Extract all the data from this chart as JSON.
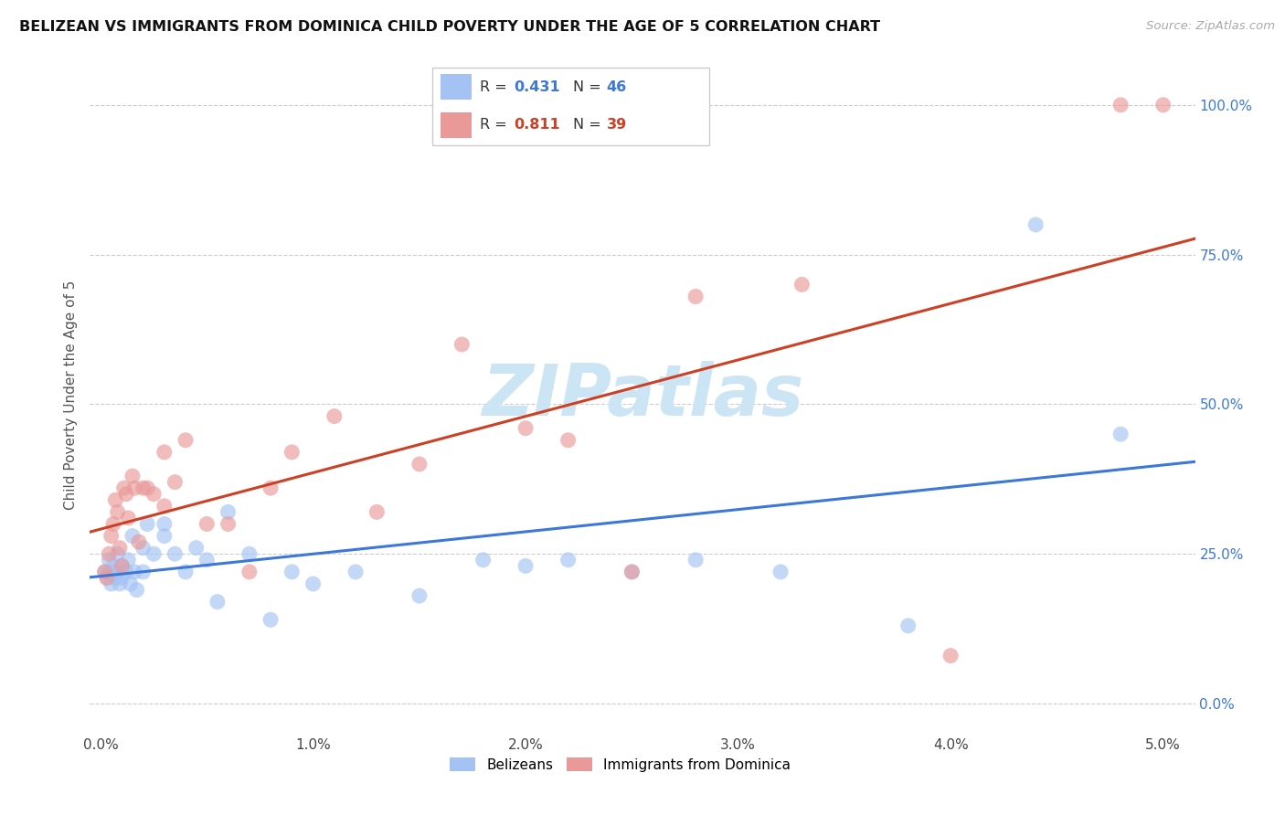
{
  "title": "BELIZEAN VS IMMIGRANTS FROM DOMINICA CHILD POVERTY UNDER THE AGE OF 5 CORRELATION CHART",
  "source": "Source: ZipAtlas.com",
  "ylabel": "Child Poverty Under the Age of 5",
  "ytick_values": [
    0.0,
    0.25,
    0.5,
    0.75,
    1.0
  ],
  "ytick_labels": [
    "0.0%",
    "25.0%",
    "50.0%",
    "75.0%",
    "100.0%"
  ],
  "xtick_values": [
    0.0,
    0.01,
    0.02,
    0.03,
    0.04,
    0.05
  ],
  "xtick_labels": [
    "0.0%",
    "1.0%",
    "2.0%",
    "3.0%",
    "4.0%",
    "5.0%"
  ],
  "xlim": [
    -0.0005,
    0.0515
  ],
  "ylim": [
    -0.05,
    1.08
  ],
  "legend_labels": [
    "Belizeans",
    "Immigrants from Dominica"
  ],
  "legend_R_blue": "0.431",
  "legend_N_blue": "46",
  "legend_R_pink": "0.811",
  "legend_N_pink": "39",
  "blue_scatter_color": "#a4c2f4",
  "pink_scatter_color": "#ea9999",
  "blue_line_color": "#3c78d8",
  "pink_line_color": "#cc4125",
  "watermark": "ZIPatlas",
  "watermark_color": "#cce5f5",
  "blue_x": [
    0.0002,
    0.0003,
    0.0004,
    0.0004,
    0.0005,
    0.0006,
    0.0006,
    0.0007,
    0.0008,
    0.0008,
    0.0009,
    0.001,
    0.001,
    0.0012,
    0.0013,
    0.0014,
    0.0015,
    0.0016,
    0.0017,
    0.002,
    0.002,
    0.0022,
    0.0025,
    0.003,
    0.003,
    0.0035,
    0.004,
    0.0045,
    0.005,
    0.0055,
    0.006,
    0.007,
    0.008,
    0.009,
    0.01,
    0.012,
    0.015,
    0.018,
    0.02,
    0.022,
    0.025,
    0.028,
    0.032,
    0.038,
    0.044,
    0.048
  ],
  "blue_y": [
    0.22,
    0.21,
    0.22,
    0.24,
    0.2,
    0.22,
    0.23,
    0.21,
    0.22,
    0.25,
    0.2,
    0.21,
    0.23,
    0.22,
    0.24,
    0.2,
    0.28,
    0.22,
    0.19,
    0.26,
    0.22,
    0.3,
    0.25,
    0.28,
    0.3,
    0.25,
    0.22,
    0.26,
    0.24,
    0.17,
    0.32,
    0.25,
    0.14,
    0.22,
    0.2,
    0.22,
    0.18,
    0.24,
    0.23,
    0.24,
    0.22,
    0.24,
    0.22,
    0.13,
    0.8,
    0.45
  ],
  "pink_x": [
    0.0002,
    0.0003,
    0.0004,
    0.0005,
    0.0006,
    0.0007,
    0.0008,
    0.0009,
    0.001,
    0.0011,
    0.0012,
    0.0013,
    0.0015,
    0.0016,
    0.0018,
    0.002,
    0.0022,
    0.0025,
    0.003,
    0.003,
    0.0035,
    0.004,
    0.005,
    0.006,
    0.007,
    0.008,
    0.009,
    0.011,
    0.013,
    0.015,
    0.017,
    0.02,
    0.022,
    0.025,
    0.028,
    0.033,
    0.04,
    0.048,
    0.05
  ],
  "pink_y": [
    0.22,
    0.21,
    0.25,
    0.28,
    0.3,
    0.34,
    0.32,
    0.26,
    0.23,
    0.36,
    0.35,
    0.31,
    0.38,
    0.36,
    0.27,
    0.36,
    0.36,
    0.35,
    0.33,
    0.42,
    0.37,
    0.44,
    0.3,
    0.3,
    0.22,
    0.36,
    0.42,
    0.48,
    0.32,
    0.4,
    0.6,
    0.46,
    0.44,
    0.22,
    0.68,
    0.7,
    0.08,
    1.0,
    1.0
  ]
}
